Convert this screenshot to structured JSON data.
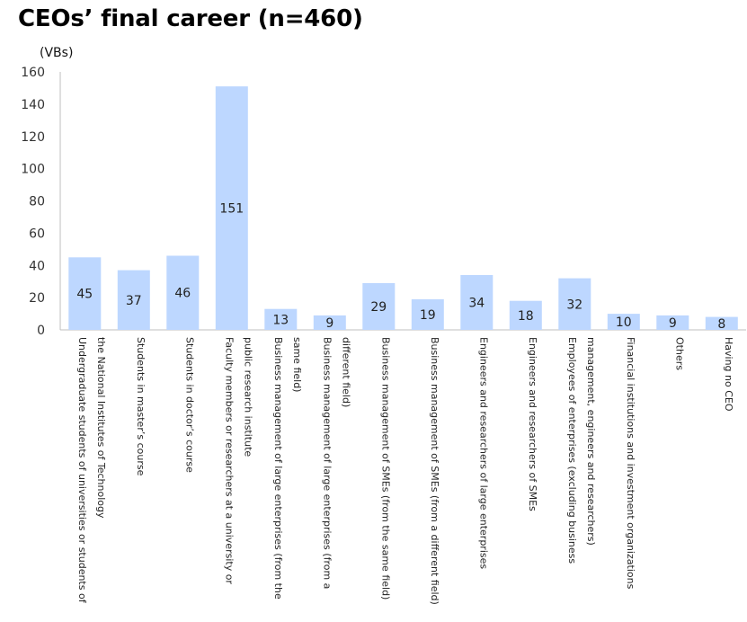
{
  "chart_data": {
    "type": "bar",
    "title": "CEOs’ final career (n=460)",
    "unit_label": "(VBs)",
    "ylim": [
      0,
      160
    ],
    "yticks": [
      0,
      20,
      40,
      60,
      80,
      100,
      120,
      140,
      160
    ],
    "grid": false,
    "bar_color": "#bdd7ff",
    "categories": [
      [
        "Undergraduate students of universities or students of",
        "the National Institutes of Technology"
      ],
      [
        "Students in master’s course"
      ],
      [
        "Students in doctor’s course"
      ],
      [
        "Faculty members or researchers at a university or",
        "public research institute"
      ],
      [
        "Business management of large enterprises (from the",
        "same field)"
      ],
      [
        "Business management of large enterprises (from a",
        "different field)"
      ],
      [
        "Business management of SMEs (from the same field)"
      ],
      [
        "Business management of SMEs (from a different field)"
      ],
      [
        "Engineers and researchers of large enterprises"
      ],
      [
        "Engineers and researchers of SMEs"
      ],
      [
        "Employees of enterprises (excluding business",
        "management, engineers and researchers)"
      ],
      [
        "Financial institutions and investment organizations"
      ],
      [
        "Others"
      ],
      [
        "Having no CEO"
      ]
    ],
    "values": [
      45,
      37,
      46,
      151,
      13,
      9,
      29,
      19,
      34,
      18,
      32,
      10,
      9,
      8
    ]
  }
}
